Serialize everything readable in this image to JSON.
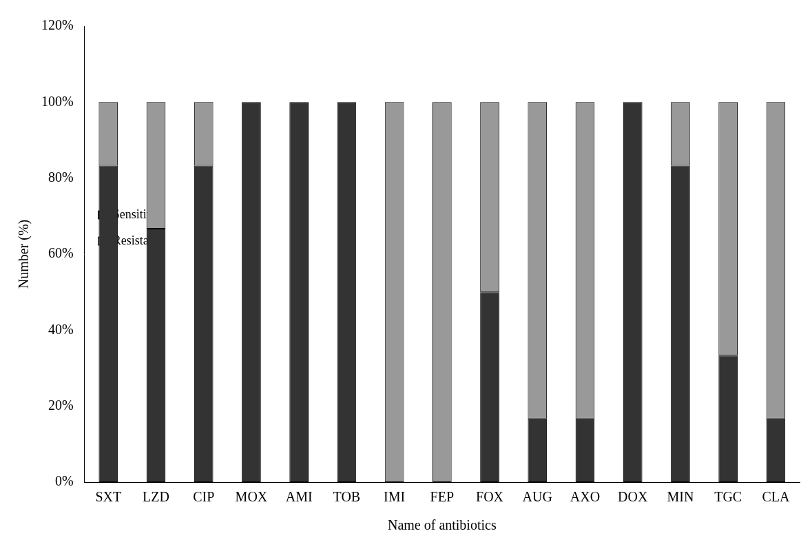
{
  "chart_data": {
    "type": "bar",
    "x_label": "Name of antibiotics",
    "y_label": "Number (%)",
    "categories": [
      "SXT",
      "LZD",
      "CIP",
      "MOX",
      "AMI",
      "TOB",
      "IMI",
      "FEP",
      "FOX",
      "AUG",
      "AXO",
      "DOX",
      "MIN",
      "TGC",
      "CLA"
    ],
    "series": [
      {
        "name": "Sensitive",
        "color": "#333333",
        "values": [
          83.3,
          66.7,
          83.3,
          100,
          100,
          100,
          0,
          0,
          50,
          16.7,
          16.7,
          100,
          83.3,
          33.3,
          16.7
        ]
      },
      {
        "name": "Resistant",
        "color": "#999999",
        "values": [
          16.7,
          33.3,
          16.7,
          0,
          0,
          0,
          100,
          100,
          50,
          83.3,
          83.3,
          0,
          16.7,
          66.7,
          83.3
        ]
      }
    ],
    "stacked": true,
    "ylim": [
      0,
      120
    ],
    "yticks": [
      {
        "value": 0,
        "label": "0%"
      },
      {
        "value": 20,
        "label": "20%"
      },
      {
        "value": 40,
        "label": "40%"
      },
      {
        "value": 60,
        "label": "60%"
      },
      {
        "value": 80,
        "label": "80%"
      },
      {
        "value": 100,
        "label": "100%"
      },
      {
        "value": 120,
        "label": "120%"
      }
    ],
    "grid": false,
    "legend": "top"
  }
}
